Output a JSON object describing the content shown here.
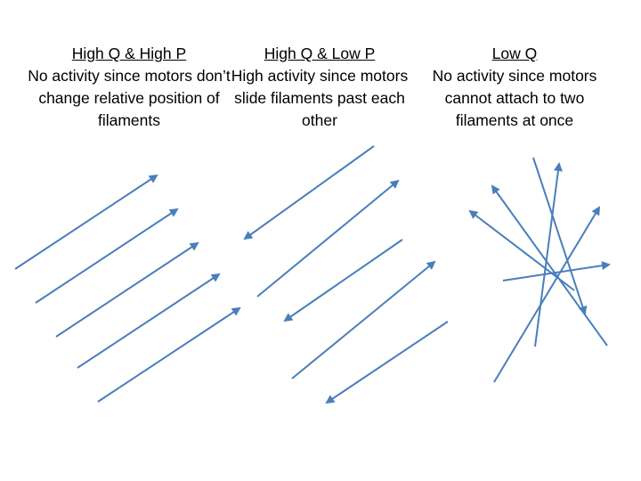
{
  "panels": [
    {
      "heading": "High Q & High P",
      "description": "No activity since motors don’t change relative position of filaments"
    },
    {
      "heading": "High Q & Low P",
      "description": "High activity since motors slide filaments past each other"
    },
    {
      "heading": "Low Q",
      "description": "No activity since motors cannot attach to two filaments at once"
    }
  ],
  "colors": {
    "arrow": "#4a7ebb",
    "text": "#000000",
    "background": "#ffffff"
  },
  "icons": [
    "arrow-icon"
  ]
}
